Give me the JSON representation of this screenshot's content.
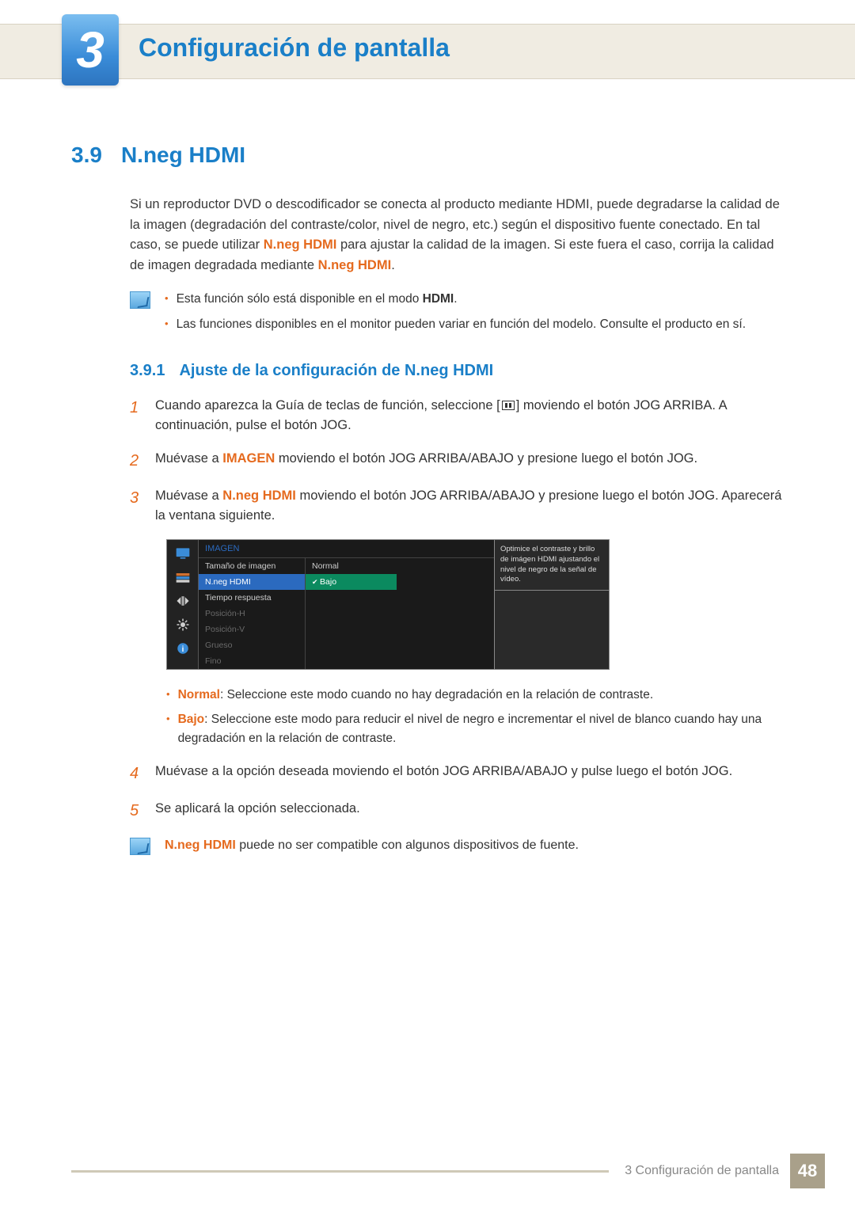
{
  "chapter": {
    "number": "3",
    "title": "Configuración de pantalla"
  },
  "section": {
    "number": "3.9",
    "title": "N.neg HDMI",
    "intro_html": "Si un reproductor DVD o descodificador se conecta al producto mediante HDMI, puede degradarse la calidad de la imagen (degradación del contraste/color, nivel de negro, etc.) según el dispositivo fuente conectado. En tal caso, se puede utilizar <span class=\"orange-b\">N.neg HDMI</span> para ajustar la calidad de la imagen. Si este fuera el caso, corrija la calidad de imagen degradada mediante <span class=\"orange-b\">N.neg HDMI</span>."
  },
  "note1": {
    "items": [
      "Esta función sólo está disponible en el modo <span class=\"blk-b\">HDMI</span>.",
      "Las funciones disponibles en el monitor pueden variar en función del modelo. Consulte el producto en sí."
    ]
  },
  "subsection": {
    "number": "3.9.1",
    "title": "Ajuste de la configuración de N.neg HDMI"
  },
  "steps": [
    {
      "n": "1",
      "html": "Cuando aparezca la Guía de teclas de función, seleccione [<span class=\"menu-icon\"></span>] moviendo el botón JOG ARRIBA. A continuación, pulse el botón JOG."
    },
    {
      "n": "2",
      "html": "Muévase a <span class=\"orange-b\">IMAGEN</span> moviendo el botón JOG ARRIBA/ABAJO y presione luego el botón JOG."
    },
    {
      "n": "3",
      "html": "Muévase a <span class=\"orange-b\">N.neg HDMI</span> moviendo el botón JOG ARRIBA/ABAJO y presione luego el botón JOG. Aparecerá la ventana siguiente."
    }
  ],
  "osd": {
    "title": "IMAGEN",
    "menu": [
      {
        "label": "Tamaño de imagen",
        "dim": false,
        "sel": false
      },
      {
        "label": "N.neg HDMI",
        "dim": false,
        "sel": true
      },
      {
        "label": "Tiempo respuesta",
        "dim": false,
        "sel": false
      },
      {
        "label": "Posición-H",
        "dim": true,
        "sel": false
      },
      {
        "label": "Posición-V",
        "dim": true,
        "sel": false
      },
      {
        "label": "Grueso",
        "dim": true,
        "sel": false
      },
      {
        "label": "Fino",
        "dim": true,
        "sel": false
      }
    ],
    "options": [
      {
        "label": "Normal",
        "hl": false
      },
      {
        "label": "Bajo",
        "hl": true
      }
    ],
    "help": "Optimice el contraste y brillo de imágen HDMI ajustando el nivel de negro de la señal de vídeo.",
    "icon_colors": {
      "active": "#3a8cd8",
      "inactive": "#cfcfcf"
    }
  },
  "option_desc": [
    "<span class=\"orange-b\">Normal</span>: Seleccione este modo cuando no hay degradación en la relación de contraste.",
    "<span class=\"orange-b\">Bajo</span>: Seleccione este modo para reducir el nivel de negro e incrementar el nivel de blanco cuando hay una degradación en la relación de contraste."
  ],
  "steps2": [
    {
      "n": "4",
      "html": "Muévase a la opción deseada moviendo el botón JOG ARRIBA/ABAJO y pulse luego el botón JOG."
    },
    {
      "n": "5",
      "html": "Se aplicará la opción seleccionada."
    }
  ],
  "note2_html": "<span class=\"orange-b\">N.neg HDMI</span> puede no ser compatible con algunos dispositivos de fuente.",
  "footer": {
    "text": "3 Configuración de pantalla",
    "page": "48"
  },
  "colors": {
    "accent_blue": "#1a7fc8",
    "accent_orange": "#e56a1e",
    "header_bg": "#f0ece2"
  }
}
